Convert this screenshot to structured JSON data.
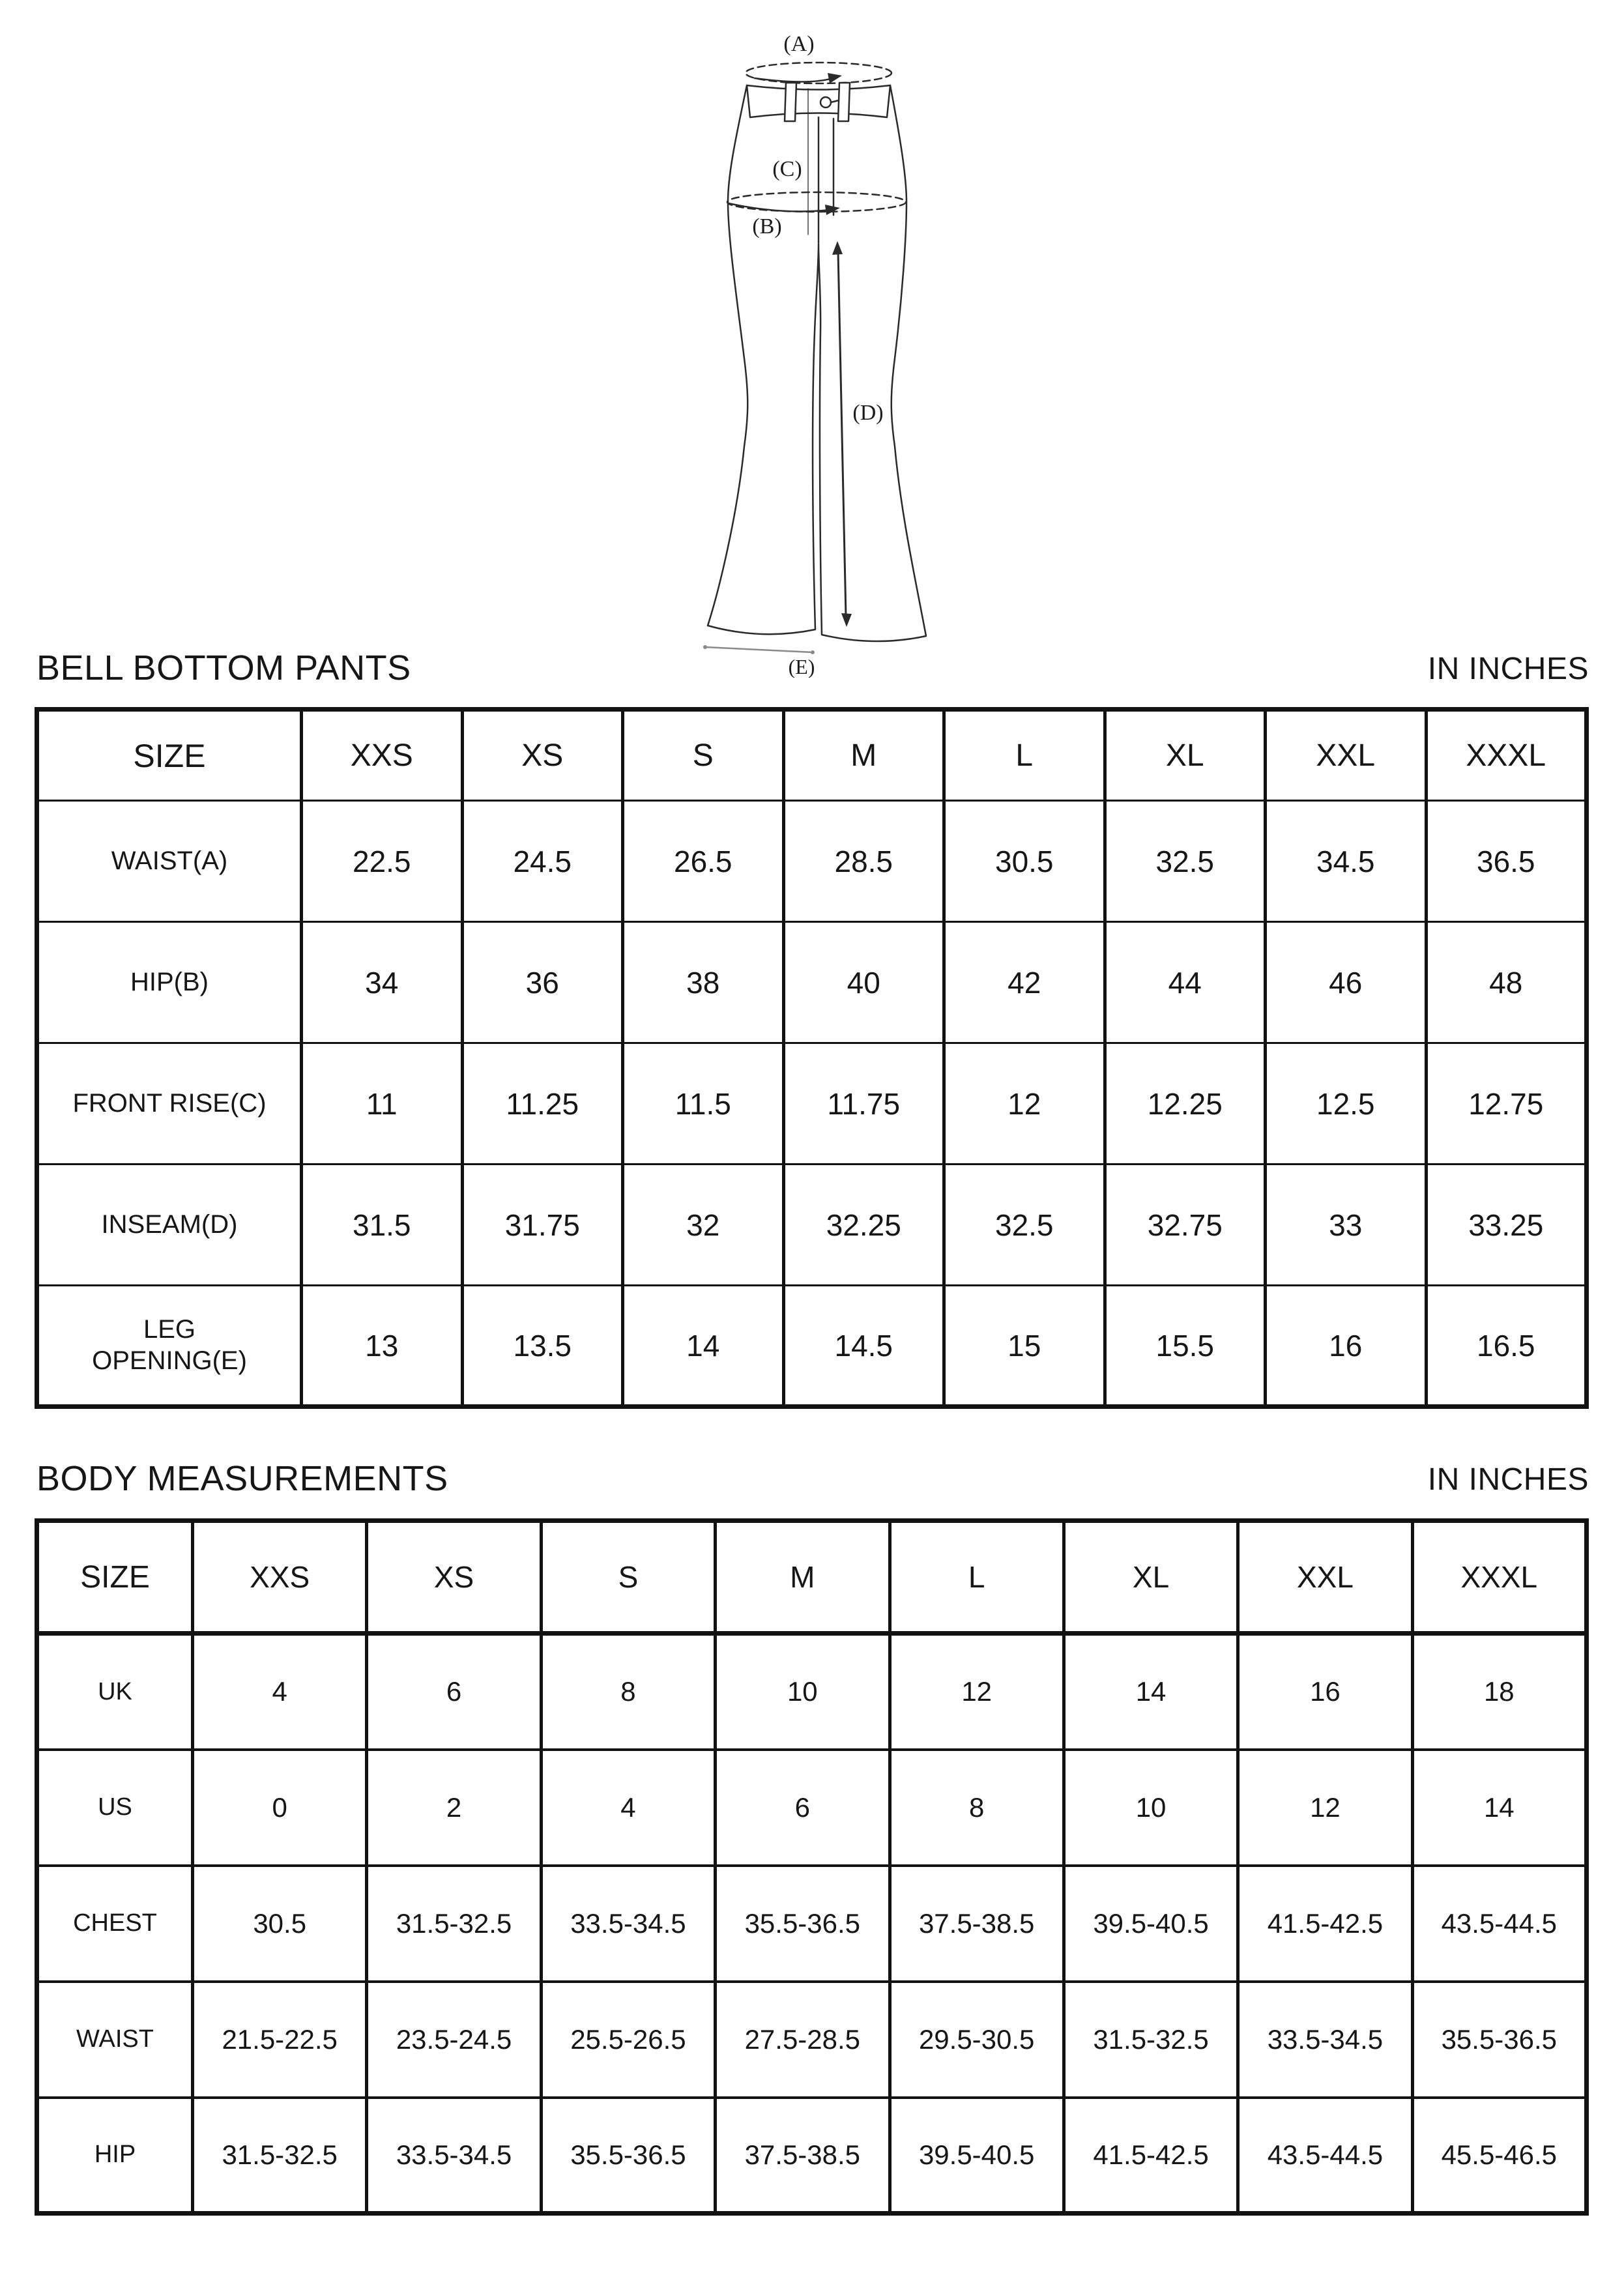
{
  "page": {
    "background": "#ffffff",
    "text_color": "#161616",
    "border_color": "#121212"
  },
  "diagram": {
    "labels": {
      "a": "(A)",
      "b": "(B)",
      "c": "(C)",
      "d": "(D)",
      "e": "(E)"
    }
  },
  "section1": {
    "title": "BELL BOTTOM PANTS",
    "unit": "IN INCHES",
    "table": {
      "size_header": "SIZE",
      "sizes": [
        "XXS",
        "XS",
        "S",
        "M",
        "L",
        "XL",
        "XXL",
        "XXXL"
      ],
      "rows": [
        {
          "label": "WAIST(A)",
          "values": [
            "22.5",
            "24.5",
            "26.5",
            "28.5",
            "30.5",
            "32.5",
            "34.5",
            "36.5"
          ]
        },
        {
          "label": "HIP(B)",
          "values": [
            "34",
            "36",
            "38",
            "40",
            "42",
            "44",
            "46",
            "48"
          ]
        },
        {
          "label": "FRONT RISE(C)",
          "values": [
            "11",
            "11.25",
            "11.5",
            "11.75",
            "12",
            "12.25",
            "12.5",
            "12.75"
          ]
        },
        {
          "label": "INSEAM(D)",
          "values": [
            "31.5",
            "31.75",
            "32",
            "32.25",
            "32.5",
            "32.75",
            "33",
            "33.25"
          ]
        },
        {
          "label": "LEG OPENING(E)",
          "values": [
            "13",
            "13.5",
            "14",
            "14.5",
            "15",
            "15.5",
            "16",
            "16.5"
          ]
        }
      ]
    }
  },
  "section2": {
    "title": "BODY MEASUREMENTS",
    "unit": "IN INCHES",
    "table": {
      "size_header": "SIZE",
      "sizes": [
        "XXS",
        "XS",
        "S",
        "M",
        "L",
        "XL",
        "XXL",
        "XXXL"
      ],
      "rows": [
        {
          "label": "UK",
          "values": [
            "4",
            "6",
            "8",
            "10",
            "12",
            "14",
            "16",
            "18"
          ]
        },
        {
          "label": "US",
          "values": [
            "0",
            "2",
            "4",
            "6",
            "8",
            "10",
            "12",
            "14"
          ]
        },
        {
          "label": "CHEST",
          "values": [
            "30.5",
            "31.5-32.5",
            "33.5-34.5",
            "35.5-36.5",
            "37.5-38.5",
            "39.5-40.5",
            "41.5-42.5",
            "43.5-44.5"
          ]
        },
        {
          "label": "WAIST",
          "values": [
            "21.5-22.5",
            "23.5-24.5",
            "25.5-26.5",
            "27.5-28.5",
            "29.5-30.5",
            "31.5-32.5",
            "33.5-34.5",
            "35.5-36.5"
          ]
        },
        {
          "label": "HIP",
          "values": [
            "31.5-32.5",
            "33.5-34.5",
            "35.5-36.5",
            "37.5-38.5",
            "39.5-40.5",
            "41.5-42.5",
            "43.5-44.5",
            "45.5-46.5"
          ]
        }
      ]
    }
  }
}
